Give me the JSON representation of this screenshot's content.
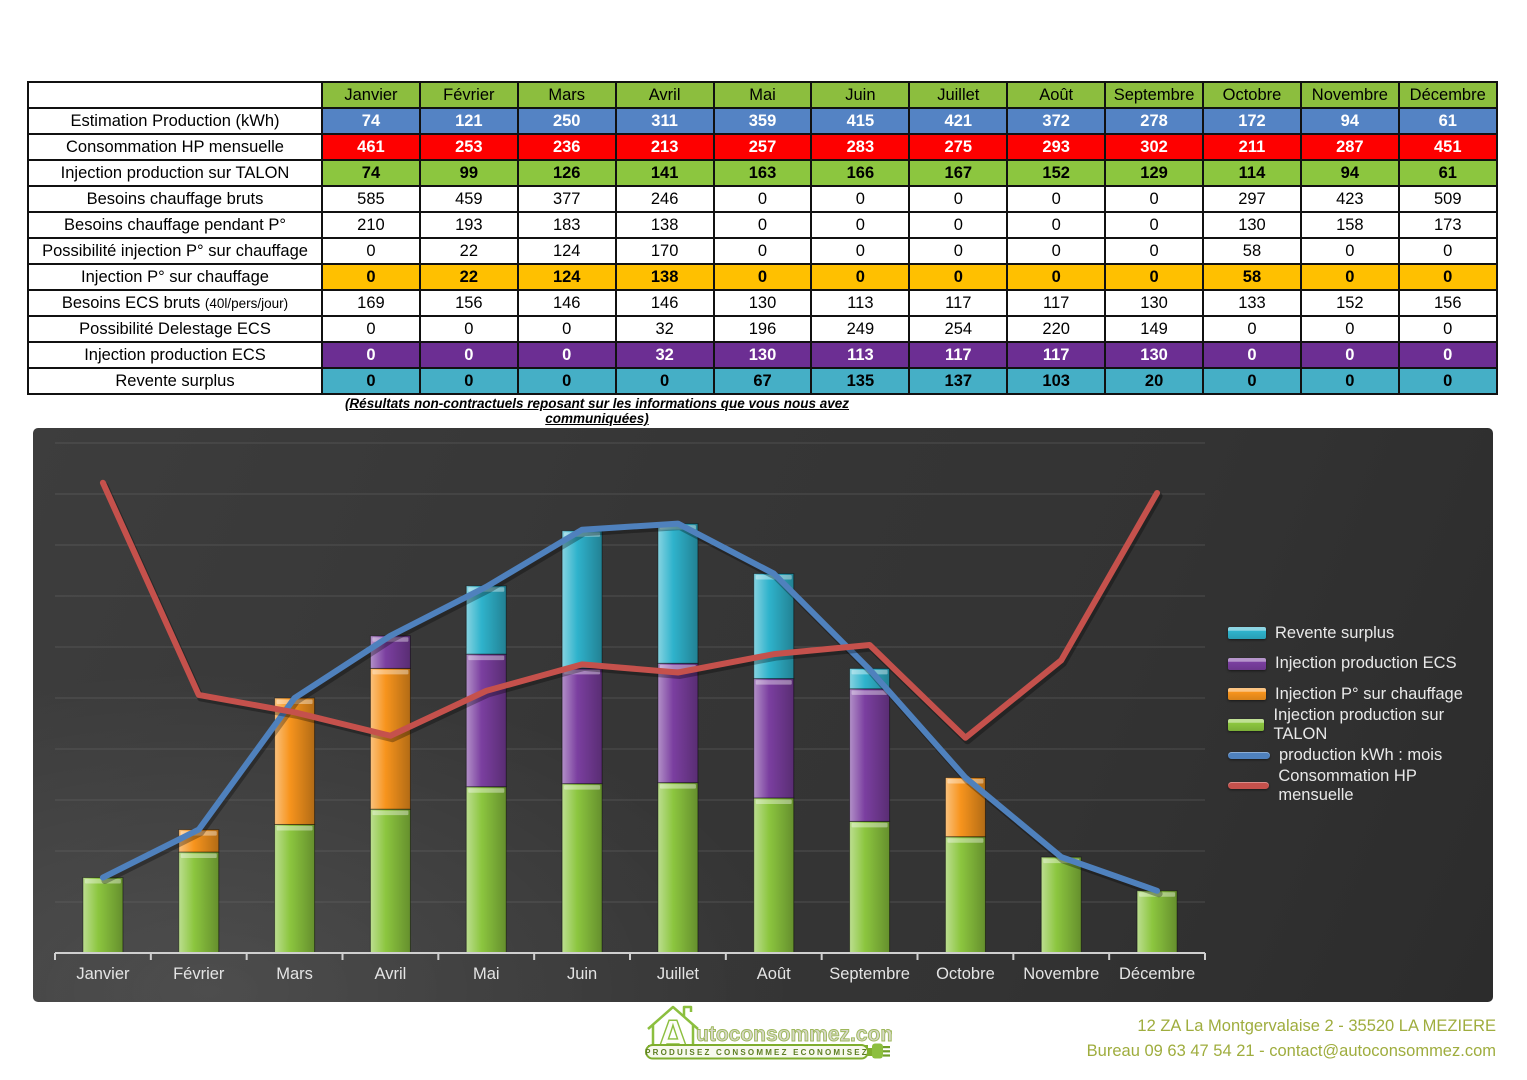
{
  "table": {
    "months": [
      "Janvier",
      "Février",
      "Mars",
      "Avril",
      "Mai",
      "Juin",
      "Juillet",
      "Août",
      "Septembre",
      "Octobre",
      "Novembre",
      "Décembre"
    ],
    "rows": [
      {
        "name": "estimation-production",
        "label": "Estimation Production (kWh)",
        "style": "blue",
        "values": [
          74,
          121,
          250,
          311,
          359,
          415,
          421,
          372,
          278,
          172,
          94,
          61
        ]
      },
      {
        "name": "consommation-hp",
        "label": "Consommation HP mensuelle",
        "style": "red",
        "values": [
          461,
          253,
          236,
          213,
          257,
          283,
          275,
          293,
          302,
          211,
          287,
          451
        ]
      },
      {
        "name": "injection-production-talon",
        "label": "Injection production sur TALON",
        "style": "green",
        "values": [
          74,
          99,
          126,
          141,
          163,
          166,
          167,
          152,
          129,
          114,
          94,
          61
        ]
      },
      {
        "name": "besoins-chauffage-bruts",
        "label": "Besoins chauffage bruts",
        "style": "plain",
        "values": [
          585,
          459,
          377,
          246,
          0,
          0,
          0,
          0,
          0,
          297,
          423,
          509
        ]
      },
      {
        "name": "besoins-chauffage-pendant-p",
        "label": "Besoins chauffage pendant P°",
        "style": "plain",
        "values": [
          210,
          193,
          183,
          138,
          0,
          0,
          0,
          0,
          0,
          130,
          158,
          173
        ]
      },
      {
        "name": "possibilite-injection-p-chauffage",
        "label": "Possibilité injection P° sur chauffage",
        "style": "plain",
        "values": [
          0,
          22,
          124,
          170,
          0,
          0,
          0,
          0,
          0,
          58,
          0,
          0
        ]
      },
      {
        "name": "injection-p-chauffage",
        "label": "Injection P° sur chauffage",
        "style": "gold",
        "values": [
          0,
          22,
          124,
          138,
          0,
          0,
          0,
          0,
          0,
          58,
          0,
          0
        ]
      },
      {
        "name": "besoins-ecs-bruts",
        "label": "Besoins ECS bruts ",
        "label_suffix": "(40l/pers/jour)",
        "style": "plain",
        "values": [
          169,
          156,
          146,
          146,
          130,
          113,
          117,
          117,
          130,
          133,
          152,
          156
        ]
      },
      {
        "name": "possibilite-delestage-ecs",
        "label": "Possibilité Delestage ECS",
        "style": "plain",
        "values": [
          0,
          0,
          0,
          32,
          196,
          249,
          254,
          220,
          149,
          0,
          0,
          0
        ]
      },
      {
        "name": "injection-production-ecs",
        "label": "Injection production ECS",
        "style": "purple",
        "values": [
          0,
          0,
          0,
          32,
          130,
          113,
          117,
          117,
          130,
          0,
          0,
          0
        ]
      },
      {
        "name": "revente-surplus",
        "label": "Revente surplus",
        "style": "teal",
        "values": [
          0,
          0,
          0,
          0,
          67,
          135,
          137,
          103,
          20,
          0,
          0,
          0
        ]
      }
    ],
    "note": "(Résultats non-contractuels reposant sur les informations que vous nous avez communiquées)"
  },
  "chart_data": {
    "type": "combo",
    "categories": [
      "Janvier",
      "Février",
      "Mars",
      "Avril",
      "Mai",
      "Juin",
      "Juillet",
      "Août",
      "Septembre",
      "Octobre",
      "Novembre",
      "Décembre"
    ],
    "series": [
      {
        "name": "Injection production sur TALON",
        "type": "bar",
        "color": "#8CC63F",
        "values": [
          74,
          99,
          126,
          141,
          163,
          166,
          167,
          152,
          129,
          114,
          94,
          61
        ]
      },
      {
        "name": "Injection P° sur chauffage",
        "type": "bar",
        "color": "#F7941D",
        "values": [
          0,
          22,
          124,
          138,
          0,
          0,
          0,
          0,
          0,
          58,
          0,
          0
        ]
      },
      {
        "name": "Injection production ECS",
        "type": "bar",
        "color": "#7B3FA0",
        "values": [
          0,
          0,
          0,
          32,
          130,
          113,
          117,
          117,
          130,
          0,
          0,
          0
        ]
      },
      {
        "name": "Revente surplus",
        "type": "bar",
        "color": "#2FB3CC",
        "values": [
          0,
          0,
          0,
          0,
          67,
          135,
          137,
          103,
          20,
          0,
          0,
          0
        ]
      },
      {
        "name": "production kWh : mois",
        "type": "line",
        "color": "#4F81BD",
        "values": [
          74,
          121,
          250,
          311,
          359,
          415,
          421,
          372,
          278,
          172,
          94,
          61
        ]
      },
      {
        "name": "Consommation HP mensuelle",
        "type": "line",
        "color": "#C5514C",
        "values": [
          461,
          253,
          236,
          213,
          257,
          283,
          275,
          293,
          302,
          211,
          287,
          451
        ]
      }
    ],
    "legend": [
      "Revente surplus",
      "Injection production ECS",
      "Injection P° sur chauffage",
      "Injection production sur TALON",
      "production kWh : mois",
      "Consommation HP mensuelle"
    ],
    "legend_position": "right",
    "title": "",
    "xlabel": "",
    "ylabel": "",
    "ylim": [
      0,
      515
    ],
    "grid": true,
    "grid_step": 50,
    "bar_mode": "stacked"
  },
  "footer": {
    "logo": {
      "letter": "A",
      "wordmark": "utoconsommez.com",
      "tagline": "PRODUISEZ CONSOMMEZ ECONOMISEZ"
    },
    "address": "12 ZA La Montgervalaise 2 - 35520 LA MEZIERE",
    "phone_line": "Bureau 09 63 47 54 21 - contact@autoconsommez.com"
  },
  "colors": {
    "header_green": "#8CBE3E",
    "row_blue": "#5483C4",
    "row_red": "#FE0000",
    "row_green": "#8CC63F",
    "row_gold": "#FFC000",
    "row_purple": "#6C2E93",
    "row_teal": "#45AFC6",
    "chart_bg_dark": "#2c2c2c",
    "contact_text": "#9FAD3E"
  }
}
